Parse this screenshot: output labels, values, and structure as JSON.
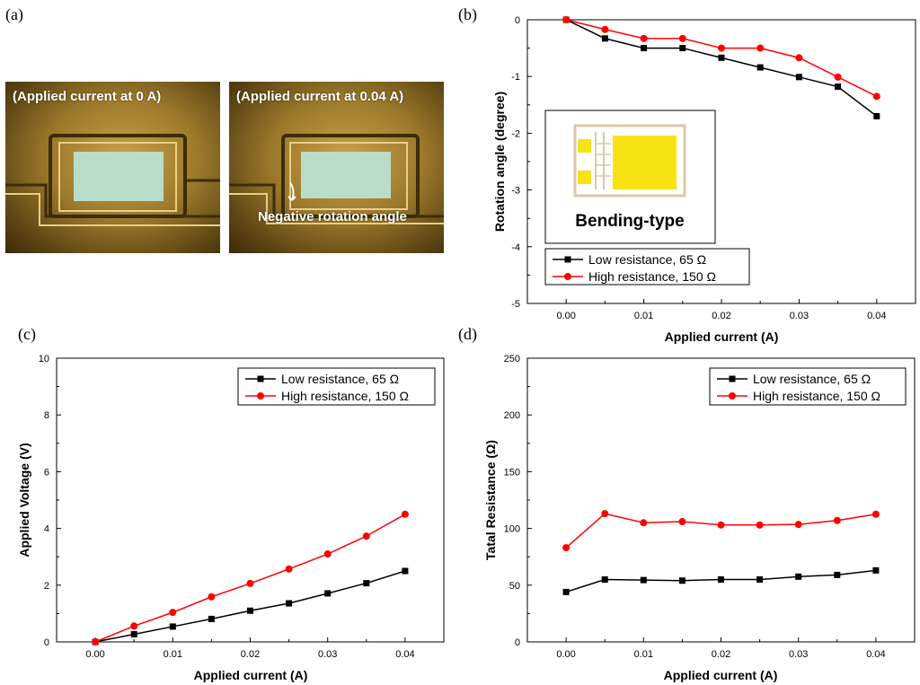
{
  "panels": {
    "a": "(a)",
    "b": "(b)",
    "c": "(c)",
    "d": "(d)"
  },
  "photos": {
    "left_caption": "(Applied current at 0 A)",
    "right_caption": "(Applied current at 0.04 A)",
    "annotation": "Negative rotation angle"
  },
  "colors": {
    "low": "#000000",
    "high": "#ff0000",
    "chip_yellow": "#f7e214",
    "chip_frame": "#d8c9a8"
  },
  "chart_data": [
    {
      "id": "b",
      "type": "line",
      "xlabel": "Applied current (A)",
      "ylabel": "Rotation angle (degree)",
      "xlim": [
        -0.005,
        0.045
      ],
      "ylim": [
        -5,
        0
      ],
      "xticks": [
        "0.00",
        "0.01",
        "0.02",
        "0.03",
        "0.04"
      ],
      "yticks": [
        "0",
        "-1",
        "-2",
        "-3",
        "-4",
        "-5"
      ],
      "x": [
        0,
        0.005,
        0.01,
        0.015,
        0.02,
        0.025,
        0.03,
        0.035,
        0.04
      ],
      "series": [
        {
          "name": "Low resistance, 65 Ω",
          "key": "low",
          "marker": "square",
          "values": [
            0,
            -0.33,
            -0.5,
            -0.5,
            -0.67,
            -0.84,
            -1.01,
            -1.18,
            -1.7
          ]
        },
        {
          "name": "High resistance, 150 Ω",
          "key": "high",
          "marker": "circle",
          "values": [
            0,
            -0.17,
            -0.33,
            -0.33,
            -0.5,
            -0.5,
            -0.67,
            -1.01,
            -1.35
          ]
        }
      ],
      "legend": "bottom-left",
      "inset_label": "Bending-type"
    },
    {
      "id": "c",
      "type": "line",
      "xlabel": "Applied current (A)",
      "ylabel": "Applied Voltage (V)",
      "xlim": [
        -0.005,
        0.045
      ],
      "ylim": [
        0,
        10
      ],
      "xticks": [
        "0.00",
        "0.01",
        "0.02",
        "0.03",
        "0.04"
      ],
      "yticks": [
        "0",
        "2",
        "4",
        "6",
        "8",
        "10"
      ],
      "x": [
        0,
        0.005,
        0.01,
        0.015,
        0.02,
        0.025,
        0.03,
        0.035,
        0.04
      ],
      "series": [
        {
          "name": "Low resistance, 65 Ω",
          "key": "low",
          "marker": "square",
          "values": [
            0,
            0.27,
            0.54,
            0.81,
            1.1,
            1.36,
            1.71,
            2.07,
            2.5
          ]
        },
        {
          "name": "High resistance, 150 Ω",
          "key": "high",
          "marker": "circle",
          "values": [
            0,
            0.56,
            1.04,
            1.59,
            2.06,
            2.57,
            3.1,
            3.73,
            4.5
          ]
        }
      ],
      "legend": "top-right"
    },
    {
      "id": "d",
      "type": "line",
      "xlabel": "Applied current (A)",
      "ylabel": "Tatal Resistance (Ω)",
      "xlim": [
        -0.005,
        0.045
      ],
      "ylim": [
        0,
        250
      ],
      "xticks": [
        "0.00",
        "0.01",
        "0.02",
        "0.03",
        "0.04"
      ],
      "yticks": [
        "0",
        "50",
        "100",
        "150",
        "200",
        "250"
      ],
      "x": [
        0,
        0.005,
        0.01,
        0.015,
        0.02,
        0.025,
        0.03,
        0.035,
        0.04
      ],
      "series": [
        {
          "name": "Low resistance, 65 Ω",
          "key": "low",
          "marker": "square",
          "values": [
            44,
            55,
            54.5,
            54,
            55,
            55,
            57.5,
            59,
            63
          ]
        },
        {
          "name": "High resistance, 150 Ω",
          "key": "high",
          "marker": "circle",
          "values": [
            83,
            113,
            105,
            106,
            103,
            103,
            103.5,
            107,
            112.5
          ]
        }
      ],
      "legend": "top-right"
    }
  ]
}
